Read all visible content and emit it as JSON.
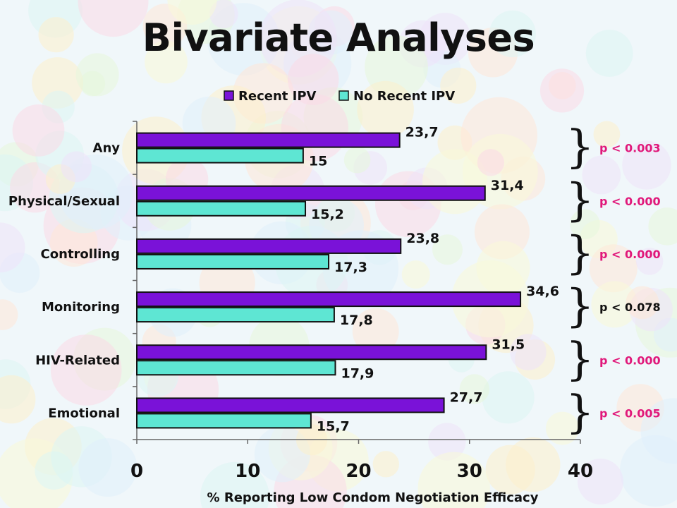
{
  "slide": {
    "title": "Bivariate Analyses"
  },
  "chart_data": {
    "type": "bar",
    "orientation": "horizontal",
    "categories": [
      "Any",
      "Physical/Sexual",
      "Controlling",
      "Monitoring",
      "HIV-Related",
      "Emotional"
    ],
    "series": [
      {
        "name": "Recent IPV",
        "color": "#7a12d8",
        "values": [
          23.7,
          31.4,
          23.8,
          34.6,
          31.5,
          27.7
        ],
        "labels": [
          "23,7",
          "31,4",
          "23,8",
          "34,6",
          "31,5",
          "27,7"
        ]
      },
      {
        "name": "No Recent IPV",
        "color": "#5ee6d3",
        "values": [
          15,
          15.2,
          17.3,
          17.8,
          17.9,
          15.7
        ],
        "labels": [
          "15",
          "15,2",
          "17,3",
          "17,8",
          "17,9",
          "15,7"
        ]
      }
    ],
    "xlim": [
      0,
      40
    ],
    "xticks": [
      "0",
      "10",
      "20",
      "30",
      "40"
    ],
    "xlabel": "% Reporting Low Condom Negotiation Efficacy",
    "legend_position": "top",
    "grid": false,
    "p_values": [
      {
        "text": "p < 0.003",
        "color": "#e0187a"
      },
      {
        "text": "p < 0.000",
        "color": "#e0187a"
      },
      {
        "text": "p < 0.000",
        "color": "#e0187a"
      },
      {
        "text": "p < 0.078",
        "color": "#111111"
      },
      {
        "text": "p < 0.000",
        "color": "#e0187a"
      },
      {
        "text": "p < 0.005",
        "color": "#e0187a"
      }
    ]
  }
}
